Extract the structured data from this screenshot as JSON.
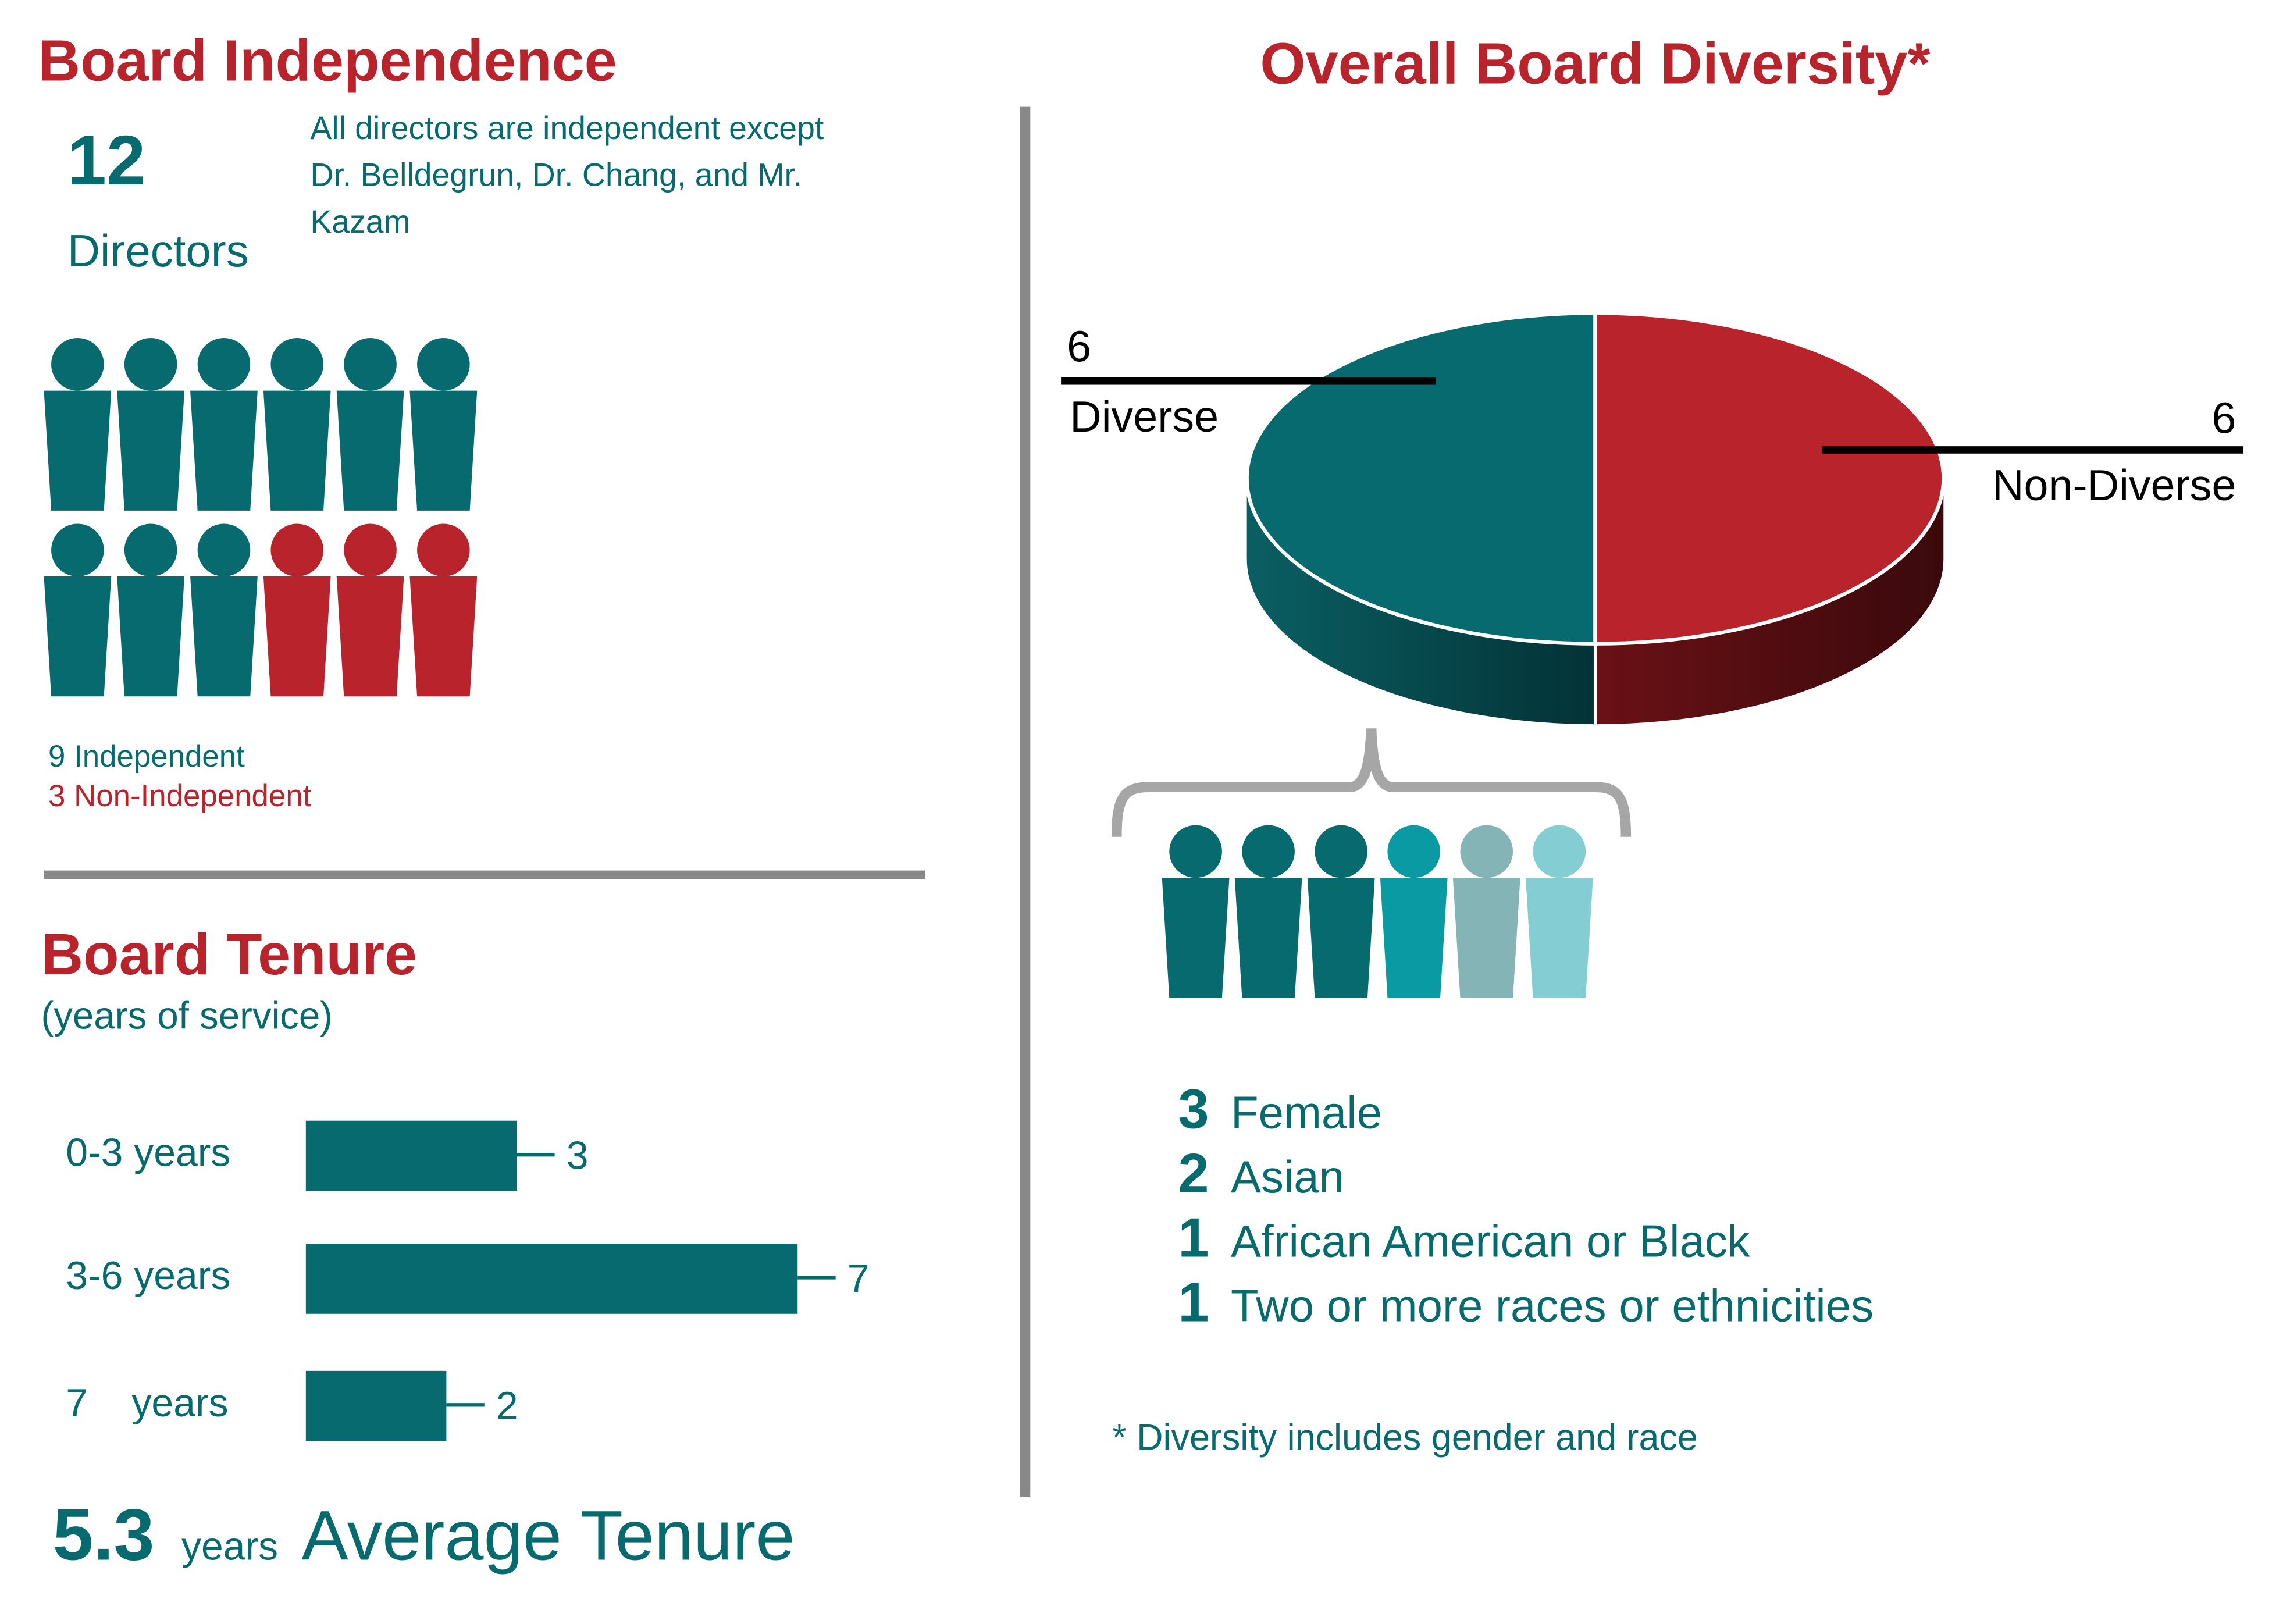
{
  "colors": {
    "teal": "#076a6e",
    "red": "#b9232b",
    "divider": "#888888",
    "bracket": "#a6a6a6"
  },
  "independence": {
    "title": "Board Independence",
    "count": "12",
    "count_label": "Directors",
    "note_lines": [
      "All directors are independent except",
      "Dr. Belldegrun, Dr. Chang, and Mr.",
      "Kazam"
    ],
    "independent": 9,
    "non_independent": 3,
    "legend_independent": "9 Independent",
    "legend_non_independent": "3 Non-Independent",
    "icon": "person-icon"
  },
  "tenure": {
    "title": "Board Tenure",
    "subtitle": "(years of service)",
    "average_value": "5.3",
    "average_unit": "years",
    "average_label": "Average Tenure"
  },
  "diversity": {
    "title": "Overall Board Diversity*",
    "diverse_value": "6",
    "diverse_label": "Diverse",
    "non_diverse_value": "6",
    "non_diverse_label": "Non-Diverse",
    "people_colors": [
      "#076a6e",
      "#076a6e",
      "#076a6e",
      "#0a9aa3",
      "#84b4b6",
      "#84cdd2"
    ],
    "breakdown": [
      {
        "count": "3",
        "label": "Female"
      },
      {
        "count": "2",
        "label": "Asian"
      },
      {
        "count": "1",
        "label": "African American or Black"
      },
      {
        "count": "1",
        "label": "Two or more races or ethnicities"
      }
    ],
    "footnote": "* Diversity includes gender and race"
  },
  "chart_data": [
    {
      "type": "bar",
      "orientation": "horizontal",
      "title": "Board Tenure",
      "subtitle": "(years of service)",
      "categories": [
        "0-3 years",
        "3-6 years",
        "7    years"
      ],
      "values": [
        3,
        7,
        2
      ],
      "data_labels": [
        "3",
        "7",
        "2"
      ],
      "color": "#076a6e",
      "grid": false
    },
    {
      "type": "pie",
      "style": "3d",
      "title": "Overall Board Diversity*",
      "slices": [
        {
          "label": "Diverse",
          "value": 6,
          "color": "#076a6e"
        },
        {
          "label": "Non-Diverse",
          "value": 6,
          "color": "#b9232b"
        }
      ]
    }
  ]
}
